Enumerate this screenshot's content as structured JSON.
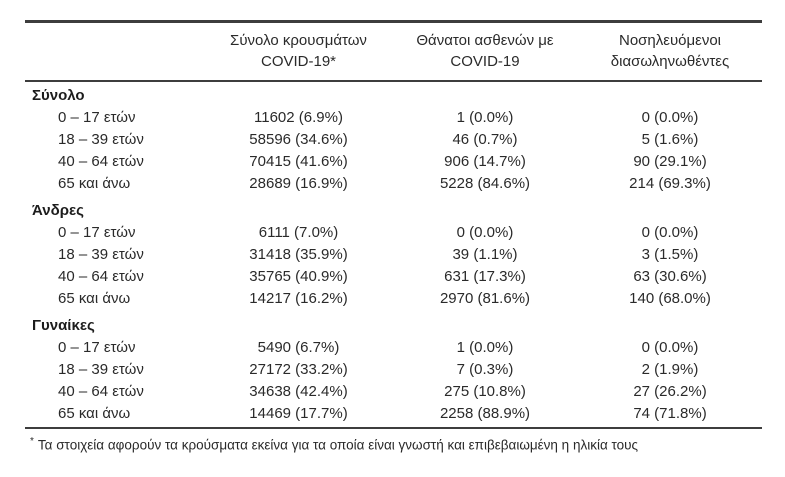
{
  "table": {
    "col_headers": [
      {
        "line1": "Σύνολο κρουσμάτων",
        "line2": "COVID-19*"
      },
      {
        "line1": "Θάνατοι ασθενών με",
        "line2": "COVID-19"
      },
      {
        "line1": "Νοσηλευόμενοι",
        "line2": "διασωληνωθέντες"
      }
    ],
    "sections": [
      {
        "label": "Σύνολο",
        "rows": [
          {
            "label": "0 – 17 ετών",
            "cases": "11602 (6.9%)",
            "deaths": "1 (0.0%)",
            "intubated": "0 (0.0%)"
          },
          {
            "label": "18 – 39 ετών",
            "cases": "58596 (34.6%)",
            "deaths": "46 (0.7%)",
            "intubated": "5 (1.6%)"
          },
          {
            "label": "40 – 64 ετών",
            "cases": "70415 (41.6%)",
            "deaths": "906 (14.7%)",
            "intubated": "90 (29.1%)"
          },
          {
            "label": "65 και άνω",
            "cases": "28689 (16.9%)",
            "deaths": "5228 (84.6%)",
            "intubated": "214 (69.3%)"
          }
        ]
      },
      {
        "label": "Άνδρες",
        "rows": [
          {
            "label": "0 – 17 ετών",
            "cases": "6111 (7.0%)",
            "deaths": "0 (0.0%)",
            "intubated": "0 (0.0%)"
          },
          {
            "label": "18 – 39 ετών",
            "cases": "31418 (35.9%)",
            "deaths": "39 (1.1%)",
            "intubated": "3 (1.5%)"
          },
          {
            "label": "40 – 64 ετών",
            "cases": "35765 (40.9%)",
            "deaths": "631 (17.3%)",
            "intubated": "63 (30.6%)"
          },
          {
            "label": "65 και άνω",
            "cases": "14217 (16.2%)",
            "deaths": "2970 (81.6%)",
            "intubated": "140 (68.0%)"
          }
        ]
      },
      {
        "label": "Γυναίκες",
        "rows": [
          {
            "label": "0 – 17 ετών",
            "cases": "5490 (6.7%)",
            "deaths": "1 (0.0%)",
            "intubated": "0 (0.0%)"
          },
          {
            "label": "18 – 39 ετών",
            "cases": "27172 (33.2%)",
            "deaths": "7 (0.3%)",
            "intubated": "2 (1.9%)"
          },
          {
            "label": "40 – 64 ετών",
            "cases": "34638 (42.4%)",
            "deaths": "275 (10.8%)",
            "intubated": "27 (26.2%)"
          },
          {
            "label": "65 και άνω",
            "cases": "14469 (17.7%)",
            "deaths": "2258 (88.9%)",
            "intubated": "74 (71.8%)"
          }
        ]
      }
    ],
    "footnote_marker": "*",
    "footnote_text": "Τα στοιχεία αφορούν τα κρούσματα εκείνα για τα οποία είναι γνωστή και επιβεβαιωμένη η ηλικία τους"
  }
}
